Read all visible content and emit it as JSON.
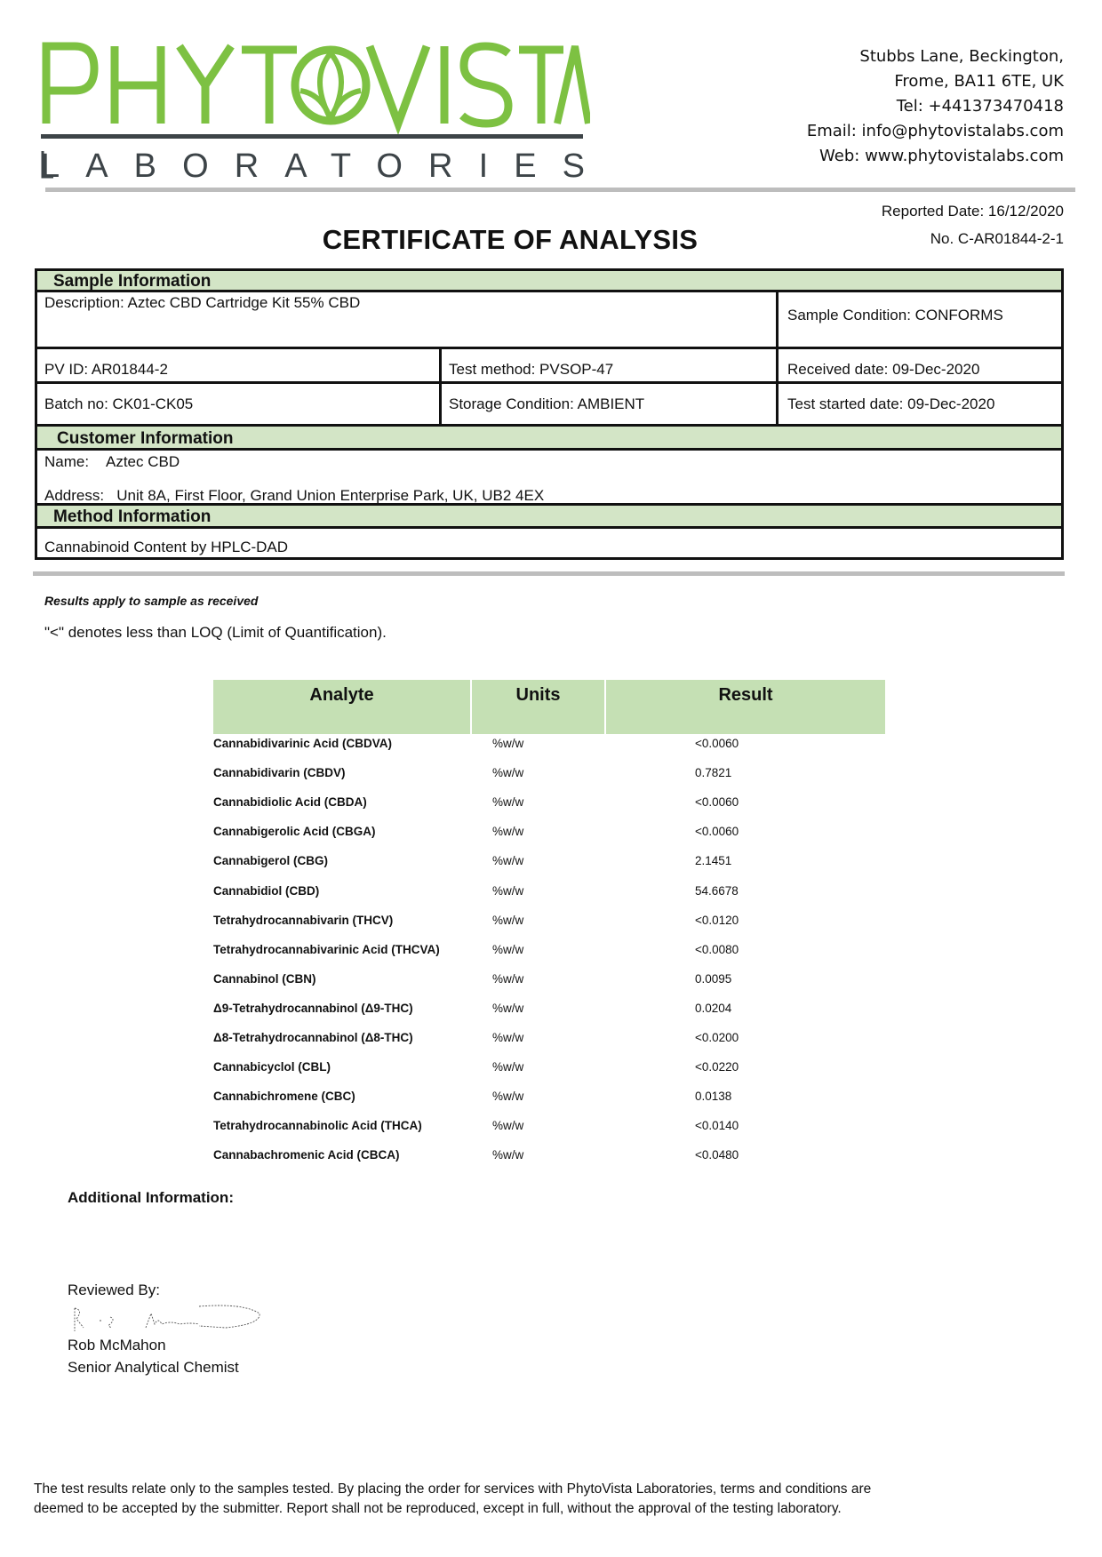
{
  "header": {
    "logo_main": "PHYTOVISTA",
    "logo_sub": "LABORATORIES",
    "brand_color": "#7dc142",
    "address_lines": [
      "Stubbs Lane, Beckington,",
      "Frome, BA11 6TE, UK",
      "Tel: +441373470418",
      "Email: info@phytovistalabs.com",
      "Web: www.phytovistalabs.com"
    ],
    "reported_date": "Reported Date: 16/12/2020",
    "cert_no": "No. C-AR01844-2-1",
    "title": "CERTIFICATE OF ANALYSIS"
  },
  "sample": {
    "heading": "Sample Information",
    "description": "Description: Aztec CBD Cartridge Kit 55% CBD",
    "condition": "Sample Condition: CONFORMS",
    "pv_id": "PV ID: AR01844-2",
    "test_method": "Test method: PVSOP-47",
    "received": "Received date: 09-Dec-2020",
    "batch": "Batch no: CK01-CK05",
    "storage": "Storage Condition: AMBIENT",
    "started": "Test started date: 09-Dec-2020"
  },
  "customer": {
    "heading": "Customer Information",
    "name_label": "Name:",
    "name": "Aztec CBD",
    "address_label": "Address:",
    "address": "Unit 8A, First Floor, Grand Union Enterprise Park, UK, UB2 4EX"
  },
  "method": {
    "heading": "Method Information",
    "text": "Cannabinoid Content by HPLC-DAD"
  },
  "notes": {
    "applies": "Results apply to sample as received",
    "loq": "\"<\" denotes less than LOQ (Limit of Quantification)."
  },
  "results": {
    "headers": [
      "Analyte",
      "Units",
      "Result"
    ],
    "rows": [
      {
        "analyte": "Cannabidivarinic Acid (CBDVA)",
        "units": "%w/w",
        "result": "<0.0060"
      },
      {
        "analyte": "Cannabidivarin (CBDV)",
        "units": "%w/w",
        "result": "0.7821"
      },
      {
        "analyte": "Cannabidiolic Acid (CBDA)",
        "units": "%w/w",
        "result": "<0.0060"
      },
      {
        "analyte": "Cannabigerolic Acid (CBGA)",
        "units": "%w/w",
        "result": "<0.0060"
      },
      {
        "analyte": "Cannabigerol (CBG)",
        "units": "%w/w",
        "result": "2.1451"
      },
      {
        "analyte": "Cannabidiol (CBD)",
        "units": "%w/w",
        "result": "54.6678"
      },
      {
        "analyte": "Tetrahydrocannabivarin (THCV)",
        "units": "%w/w",
        "result": "<0.0120"
      },
      {
        "analyte": "Tetrahydrocannabivarinic Acid (THCVA)",
        "units": "%w/w",
        "result": "<0.0080"
      },
      {
        "analyte": "Cannabinol (CBN)",
        "units": "%w/w",
        "result": "0.0095"
      },
      {
        "analyte": "Δ9-Tetrahydrocannabinol (Δ9-THC)",
        "units": "%w/w",
        "result": "0.0204"
      },
      {
        "analyte": "Δ8-Tetrahydrocannabinol (Δ8-THC)",
        "units": "%w/w",
        "result": "<0.0200"
      },
      {
        "analyte": "Cannabicyclol (CBL)",
        "units": "%w/w",
        "result": "<0.0220"
      },
      {
        "analyte": "Cannabichromene (CBC)",
        "units": "%w/w",
        "result": "0.0138"
      },
      {
        "analyte": "Tetrahydrocannabinolic Acid (THCA)",
        "units": "%w/w",
        "result": "<0.0140"
      },
      {
        "analyte": "Cannabachromenic Acid (CBCA)",
        "units": "%w/w",
        "result": "<0.0480"
      }
    ]
  },
  "additional": {
    "label": "Additional Information:"
  },
  "review": {
    "label": "Reviewed By:",
    "name": "Rob McMahon",
    "role": "Senior Analytical Chemist"
  },
  "footer": {
    "line1": "The test results relate only to the samples tested.  By placing the order for services with PhytoVista Laboratories, terms and conditions are",
    "line2": "deemed to be accepted by the submitter. Report shall not be reproduced, except in full, without the approval of the testing laboratory."
  }
}
